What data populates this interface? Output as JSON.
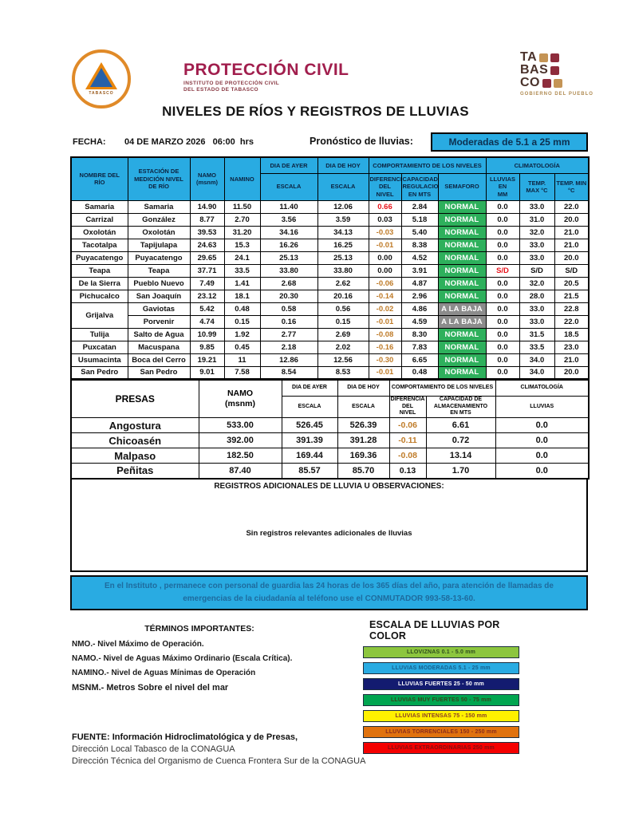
{
  "palette": {
    "cyan": "#29ABE2",
    "normal_green": "#2EB05C",
    "baja_gray": "#8C8C8C",
    "alert_red": "#E8131B",
    "neg_amber": "#BF7B28",
    "brand_maroon": "#A11E4D"
  },
  "header": {
    "org_name": "PROTECCIÓN CIVIL",
    "org_sub1": "INSTITUTO DE PROTECCIÓN CIVIL",
    "org_sub2": "DEL ESTADO DE TABASCO",
    "seal_bottom": "TABASCO",
    "tabasco": {
      "lines": [
        "TA",
        "BAS",
        "CO"
      ],
      "tagline": "GOBIERNO DEL PUEBLO"
    },
    "title": "NIVELES DE RÍOS Y REGISTROS DE LLUVIAS"
  },
  "meta": {
    "fecha_label": "FECHA:",
    "fecha_value": "04 DE MARZO 2026   06:00  hrs",
    "pronostico_label": "Pronóstico de lluvias:",
    "pronostico_value": "Moderadas de 5.1 a 25 mm"
  },
  "rivers": {
    "headers": {
      "col_river": "NOMBRE DEL\nRÍO",
      "col_station": "ESTACIÓN DE\nMEDICIÓN NIVEL\nDE RÍO",
      "col_namo": "NAMO\n(msnm)",
      "col_namino": "NAMINO",
      "col_yesterday": "DIA DE AYER",
      "col_today": "DIA DE HOY",
      "col_scale_y": "ESCALA",
      "col_scale_t": "ESCALA",
      "col_behavior": "COMPORTAMIENTO DE LOS NIVELES",
      "col_diff": "DIFERENCIA\nDEL NIVEL",
      "col_capacity": "CAPACIDAD\nREGULACION\nEN MTS",
      "col_semaforo": "SEMAFORO",
      "col_clima": "CLIMATOLOGÍA",
      "col_rain": "LLUVIAS EN\nMM",
      "col_tmax": "TEMP.\nMAX °C",
      "col_tmin": "TEMP.  MIN\n°C"
    },
    "rows": [
      {
        "river": "Samaria",
        "station": "Samaria",
        "namo": "14.90",
        "namino": "11.50",
        "ayer": "11.40",
        "hoy": "12.06",
        "dif": "0.66",
        "dif_tone": "red",
        "cap": "2.84",
        "sem": "NORMAL",
        "sem_tone": "green",
        "rain": "0.0",
        "rain_tone": "black",
        "tmax": "33.0",
        "tmin": "22.0"
      },
      {
        "river": "Carrizal",
        "station": "González",
        "namo": "8.77",
        "namino": "2.70",
        "ayer": "3.56",
        "hoy": "3.59",
        "dif": "0.03",
        "dif_tone": "black",
        "cap": "5.18",
        "sem": "NORMAL",
        "sem_tone": "green",
        "rain": "0.0",
        "rain_tone": "black",
        "tmax": "31.0",
        "tmin": "20.0"
      },
      {
        "river": "Oxolotán",
        "station": "Oxolotán",
        "namo": "39.53",
        "namino": "31.20",
        "ayer": "34.16",
        "hoy": "34.13",
        "dif": "-0.03",
        "dif_tone": "amber",
        "cap": "5.40",
        "sem": "NORMAL",
        "sem_tone": "green",
        "rain": "0.0",
        "rain_tone": "black",
        "tmax": "32.0",
        "tmin": "21.0"
      },
      {
        "river": "Tacotalpa",
        "station": "Tapijulapa",
        "namo": "24.63",
        "namino": "15.3",
        "ayer": "16.26",
        "hoy": "16.25",
        "dif": "-0.01",
        "dif_tone": "amber",
        "cap": "8.38",
        "sem": "NORMAL",
        "sem_tone": "green",
        "rain": "0.0",
        "rain_tone": "black",
        "tmax": "33.0",
        "tmin": "21.0"
      },
      {
        "river": "Puyacatengo",
        "station": "Puyacatengo",
        "namo": "29.65",
        "namino": "24.1",
        "ayer": "25.13",
        "hoy": "25.13",
        "dif": "0.00",
        "dif_tone": "black",
        "cap": "4.52",
        "sem": "NORMAL",
        "sem_tone": "green",
        "rain": "0.0",
        "rain_tone": "black",
        "tmax": "33.0",
        "tmin": "20.0"
      },
      {
        "river": "Teapa",
        "station": "Teapa",
        "namo": "37.71",
        "namino": "33.5",
        "ayer": "33.80",
        "hoy": "33.80",
        "dif": "0.00",
        "dif_tone": "black",
        "cap": "3.91",
        "sem": "NORMAL",
        "sem_tone": "green",
        "rain": "S/D",
        "rain_tone": "red",
        "tmax": "S/D",
        "tmin": "S/D"
      },
      {
        "river": "De la Sierra",
        "station": "Pueblo Nuevo",
        "namo": "7.49",
        "namino": "1.41",
        "ayer": "2.68",
        "hoy": "2.62",
        "dif": "-0.06",
        "dif_tone": "amber",
        "cap": "4.87",
        "sem": "NORMAL",
        "sem_tone": "green",
        "rain": "0.0",
        "rain_tone": "black",
        "tmax": "32.0",
        "tmin": "20.5"
      },
      {
        "river": "Pichucalco",
        "station": "San Joaquín",
        "namo": "23.12",
        "namino": "18.1",
        "ayer": "20.30",
        "hoy": "20.16",
        "dif": "-0.14",
        "dif_tone": "amber",
        "cap": "2.96",
        "sem": "NORMAL",
        "sem_tone": "green",
        "rain": "0.0",
        "rain_tone": "black",
        "tmax": "28.0",
        "tmin": "21.5"
      },
      {
        "river": "Grijalva",
        "river_span": 2,
        "station": "Gaviotas",
        "namo": "5.42",
        "namino": "0.48",
        "ayer": "0.58",
        "hoy": "0.56",
        "dif": "-0.02",
        "dif_tone": "amber",
        "cap": "4.86",
        "sem": "A LA BAJA",
        "sem_tone": "gray",
        "rain": "0.0",
        "rain_tone": "black",
        "tmax": "33.0",
        "tmin": "22.8"
      },
      {
        "river_skip": true,
        "station": "Porvenir",
        "namo": "4.74",
        "namino": "0.15",
        "ayer": "0.16",
        "hoy": "0.15",
        "dif": "-0.01",
        "dif_tone": "amber",
        "cap": "4.59",
        "sem": "A LA BAJA",
        "sem_tone": "gray",
        "rain": "0.0",
        "rain_tone": "black",
        "tmax": "33.0",
        "tmin": "22.0"
      },
      {
        "river": "Tulija",
        "station": "Salto de Agua",
        "namo": "10.99",
        "namino": "1.92",
        "ayer": "2.77",
        "hoy": "2.69",
        "dif": "-0.08",
        "dif_tone": "amber",
        "cap": "8.30",
        "sem": "NORMAL",
        "sem_tone": "green",
        "rain": "0.0",
        "rain_tone": "black",
        "tmax": "31.5",
        "tmin": "18.5"
      },
      {
        "river": "Puxcatan",
        "station": "Macuspana",
        "namo": "9.85",
        "namino": "0.45",
        "ayer": "2.18",
        "hoy": "2.02",
        "dif": "-0.16",
        "dif_tone": "amber",
        "cap": "7.83",
        "sem": "NORMAL",
        "sem_tone": "green",
        "rain": "0.0",
        "rain_tone": "black",
        "tmax": "33.5",
        "tmin": "23.0"
      },
      {
        "river": "Usumacinta",
        "station": "Boca del Cerro",
        "namo": "19.21",
        "namino": "11",
        "ayer": "12.86",
        "hoy": "12.56",
        "dif": "-0.30",
        "dif_tone": "amber",
        "cap": "6.65",
        "sem": "NORMAL",
        "sem_tone": "green",
        "rain": "0.0",
        "rain_tone": "black",
        "tmax": "34.0",
        "tmin": "21.0"
      },
      {
        "river": "San Pedro",
        "station": "San Pedro",
        "namo": "9.01",
        "namino": "7.58",
        "ayer": "8.54",
        "hoy": "8.53",
        "dif": "-0.01",
        "dif_tone": "amber",
        "cap": "0.48",
        "sem": "NORMAL",
        "sem_tone": "green",
        "rain": "0.0",
        "rain_tone": "black",
        "tmax": "34.0",
        "tmin": "20.0"
      }
    ]
  },
  "presas": {
    "headers": {
      "col_name": "PRESAS",
      "col_namo": "NAMO\n(msnm)",
      "col_yesterday": "DIA DE AYER",
      "col_today": "DIA DE HOY",
      "col_scale_y": "ESCALA",
      "col_scale_t": "ESCALA",
      "col_behavior": "COMPORTAMIENTO DE LOS NIVELES",
      "col_diff": "DIFERENCIA DEL\nNIVEL",
      "col_capacity": "CAPACIDAD DE ALMACENAMIENTO\nEN MTS",
      "col_clima": "CLIMATOLOGÍA",
      "col_rain": "LLUVIAS"
    },
    "rows": [
      {
        "name": "Angostura",
        "namo": "533.00",
        "ayer": "526.45",
        "hoy": "526.39",
        "dif": "-0.06",
        "dif_tone": "amber",
        "cap": "6.61",
        "rain": "0.0"
      },
      {
        "name": "Chicoasén",
        "namo": "392.00",
        "ayer": "391.39",
        "hoy": "391.28",
        "dif": "-0.11",
        "dif_tone": "amber",
        "cap": "0.72",
        "rain": "0.0"
      },
      {
        "name": "Malpaso",
        "namo": "182.50",
        "ayer": "169.44",
        "hoy": "169.36",
        "dif": "-0.08",
        "dif_tone": "amber",
        "cap": "13.14",
        "rain": "0.0"
      },
      {
        "name": "Peñitas",
        "namo": "87.40",
        "ayer": "85.57",
        "hoy": "85.70",
        "dif": "0.13",
        "dif_tone": "black",
        "cap": "1.70",
        "rain": "0.0"
      }
    ]
  },
  "obs": {
    "title": "REGISTROS ADICIONALES DE LLUVIA U OBSERVACIONES:",
    "message": "Sin registros relevantes adicionales de lluvias"
  },
  "notice": "En el Instituto , permanece con personal de guardia las 24 horas de los 365 días del año, para atención de llamadas de emergencias de la ciudadanía al teléfono use el CONMUTADOR  993-58-13-60.",
  "terms": {
    "title": "TÉRMINOS IMPORTANTES:",
    "items": [
      "NMO.- Nivel Máximo de Operación.",
      "NAMO.- Nivel de Aguas Máximo Ordinario (Escala Crítica).",
      "NAMINO.- Nivel de Aguas Mínimas de Operación",
      "MSNM.- Metros Sobre el nivel del mar"
    ]
  },
  "legend": {
    "title": "ESCALA DE LLUVIAS POR COLOR",
    "bars": [
      {
        "label": "LLOVIZNAS  0.1 -  5.0 mm",
        "bg": "#8CC63E",
        "fg": "#2f4d1d"
      },
      {
        "label": "LLUVIAS MODERADAS 5.1 - 25 mm",
        "bg": "#29ABE2",
        "fg": "#17618f"
      },
      {
        "label": "LLUVIAS FUERTES      25 - 50 mm",
        "bg": "#131B70",
        "fg": "#ffffff"
      },
      {
        "label": "LLUVIAS MUY FUERTES  50 - 75 mm",
        "bg": "#00A550",
        "fg": "#35421c"
      },
      {
        "label": "LLUVIAS INTENSAS   75 - 150 mm",
        "bg": "#FFF100",
        "fg": "#8a3c25"
      },
      {
        "label": "LLUVIAS TORRENCIALES  150 - 250  mm",
        "bg": "#E0720E",
        "fg": "#8a2c1c"
      },
      {
        "label": "LLUVIAS EXTRAORDINARIAS 250  mm",
        "bg": "#F40000",
        "fg": "#7e1112"
      }
    ]
  },
  "fuente": {
    "line1": "FUENTE: Información Hidroclimatológica y de Presas,",
    "line2": "Dirección Local Tabasco de la CONAGUA",
    "line3": "Dirección Técnica del Organismo de Cuenca Frontera Sur de la CONAGUA"
  }
}
